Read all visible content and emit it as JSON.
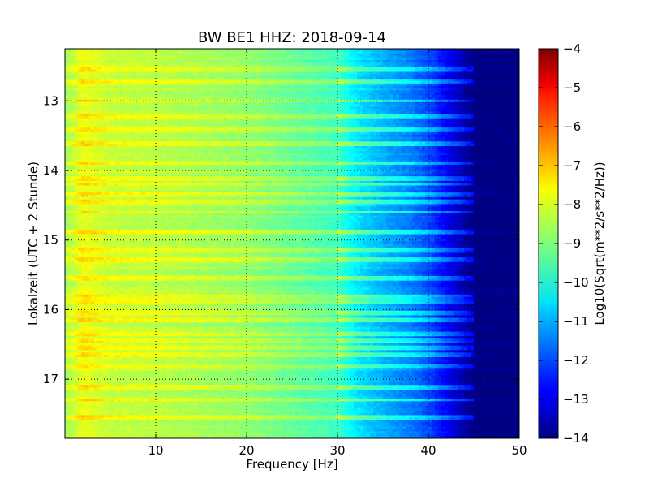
{
  "chart_data": {
    "type": "heatmap",
    "title": "BW BE1 HHZ: 2018-09-14",
    "xlabel": "Frequency [Hz]",
    "ylabel": "Lokalzeit (UTC + 2 Stunde)",
    "xlim": [
      0,
      50
    ],
    "ylim": [
      12.25,
      17.85
    ],
    "y_inverted": true,
    "xticks": [
      10,
      20,
      30,
      40,
      50
    ],
    "yticks": [
      13,
      14,
      15,
      16,
      17
    ],
    "grid": true,
    "colorbar": {
      "label": "Log10(Sqrt(m**2/s**2/Hz))",
      "range": [
        -14,
        -4
      ],
      "ticks": [
        -4,
        -5,
        -6,
        -7,
        -8,
        -9,
        -10,
        -11,
        -12,
        -13,
        -14
      ],
      "colormap": "jet"
    },
    "spectral_profile": {
      "frequency_hz": [
        0,
        2,
        5,
        10,
        15,
        20,
        25,
        30,
        32,
        35,
        38,
        40,
        42,
        44,
        45,
        50
      ],
      "log_amplitude": [
        -8.7,
        -7.9,
        -8.3,
        -8.4,
        -8.6,
        -8.8,
        -9.2,
        -9.6,
        -10.4,
        -11.0,
        -11.5,
        -12.0,
        -12.8,
        -13.6,
        -14.0,
        -14.0
      ]
    },
    "bright_bands_hours": [
      12.55,
      12.72,
      13.0,
      13.22,
      13.42,
      13.62,
      13.9,
      14.12,
      14.2,
      14.35,
      14.45,
      14.6,
      14.88,
      15.15,
      15.28,
      15.55,
      15.82,
      15.88,
      16.05,
      16.15,
      16.35,
      16.45,
      16.55,
      16.65,
      16.82,
      17.12,
      17.3,
      17.55
    ]
  }
}
